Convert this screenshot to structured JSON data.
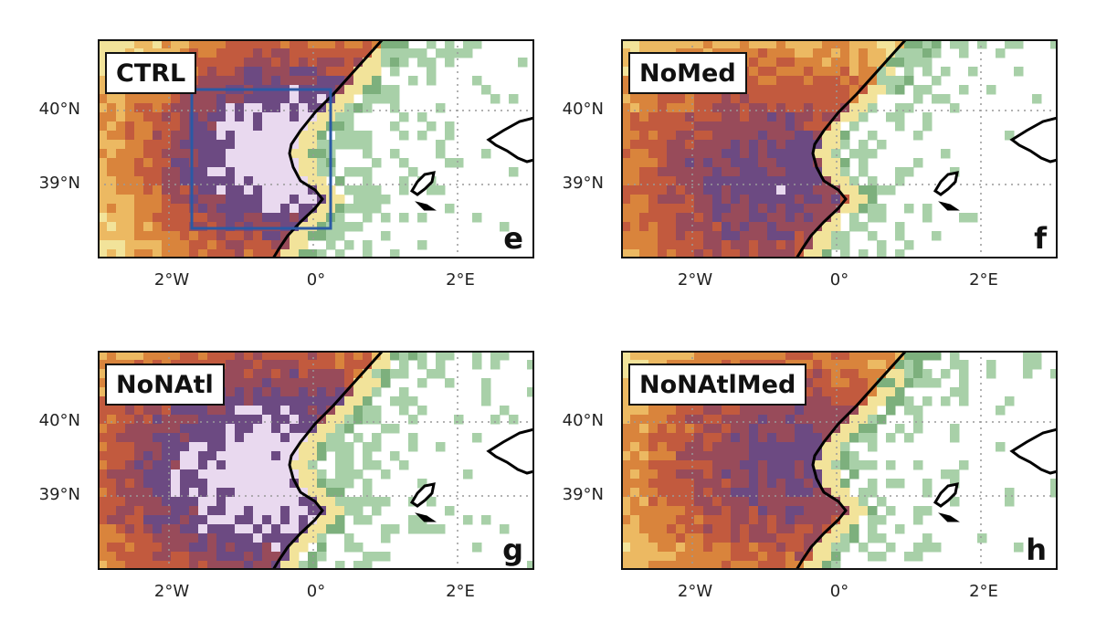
{
  "panels": [
    {
      "id": "e",
      "experiment": "CTRL",
      "letter": "e"
    },
    {
      "id": "f",
      "experiment": "NoMed",
      "letter": "f"
    },
    {
      "id": "g",
      "experiment": "NoNAtl",
      "letter": "g"
    },
    {
      "id": "h",
      "experiment": "NoNAtlMed",
      "letter": "h"
    }
  ],
  "axes": {
    "lat_ticks": [
      "40°N",
      "39°N"
    ],
    "lon_ticks": [
      "2°W",
      "0°",
      "2°E"
    ]
  },
  "colors": {
    "ocean": "#ffffff",
    "coastline": "#000000",
    "box": "#2a5aa5",
    "palette": [
      "#a8d0a8",
      "#7db07d",
      "#f2e39a",
      "#ecb962",
      "#d9843c",
      "#c25a3e",
      "#984b5a",
      "#6c4a82",
      "#e9d9ef"
    ]
  }
}
